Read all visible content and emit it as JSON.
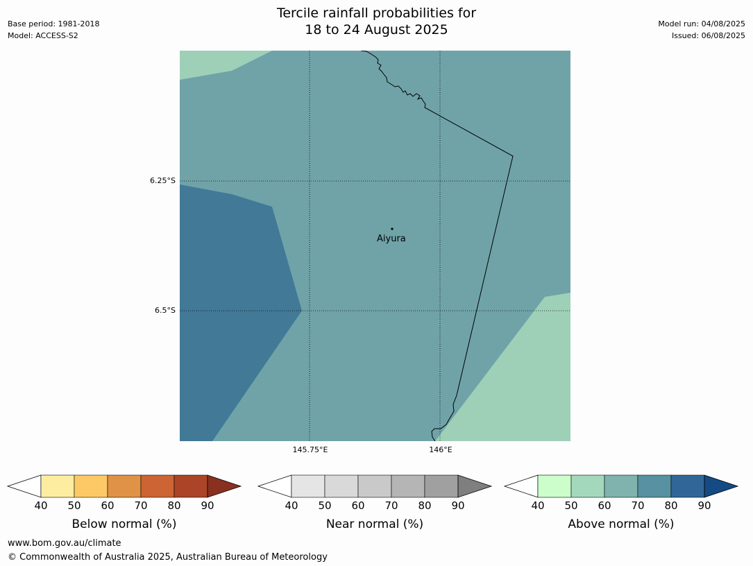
{
  "header": {
    "title_line1": "Tercile rainfall probabilities for",
    "title_line2": "18 to 24 August 2025",
    "base_period": "Base period: 1981-2018",
    "model": "Model: ACCESS-S2",
    "model_run": "Model run: 04/08/2025",
    "issued": "Issued: 06/08/2025"
  },
  "map": {
    "lat_labels": [
      "6.25°S",
      "6.5°S"
    ],
    "lon_labels": [
      "145.75°E",
      "146°E"
    ],
    "town": "Aiyura",
    "region_colors": {
      "above_50_60": "#9ed0b8",
      "above_60_70": "#6fa3a8",
      "above_70_80": "#417997"
    }
  },
  "colorbars": [
    {
      "name": "below",
      "label": "Below normal (%)",
      "ticks": [
        "40",
        "50",
        "60",
        "70",
        "80",
        "90"
      ],
      "colors": [
        "#fdeda1",
        "#fdc966",
        "#e09346",
        "#cc6433",
        "#ac4427"
      ],
      "extend_color": "#8a3020"
    },
    {
      "name": "near",
      "label": "Near normal (%)",
      "ticks": [
        "40",
        "50",
        "60",
        "70",
        "80",
        "90"
      ],
      "colors": [
        "#e5e5e5",
        "#d9d9d9",
        "#c9c9c9",
        "#b5b5b5",
        "#a0a0a0"
      ],
      "extend_color": "#7f7f7f"
    },
    {
      "name": "above",
      "label": "Above normal (%)",
      "ticks": [
        "40",
        "50",
        "60",
        "70",
        "80",
        "90"
      ],
      "colors": [
        "#ccfecc",
        "#a4d8bd",
        "#80b3ad",
        "#5891a1",
        "#316798"
      ],
      "extend_color": "#144b85"
    }
  ],
  "footer": {
    "website": "www.bom.gov.au/climate",
    "copyright": "© Commonwealth of Australia 2025, Australian Bureau of Meteorology"
  }
}
